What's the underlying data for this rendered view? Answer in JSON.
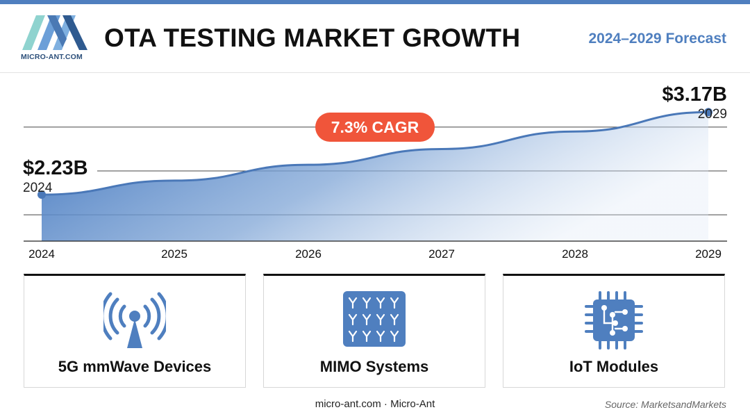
{
  "header": {
    "logo_text": "MICRO-ANT.COM",
    "title": "OTA TESTING MARKET GROWTH",
    "forecast": "2024–2029 Forecast"
  },
  "chart_data": {
    "type": "area",
    "title": "OTA TESTING MARKET GROWTH",
    "x": [
      "2024",
      "2025",
      "2026",
      "2027",
      "2028",
      "2029"
    ],
    "values": [
      2.23,
      2.39,
      2.57,
      2.75,
      2.95,
      3.17
    ],
    "unit": "$B",
    "ylim": [
      1.7,
      3.3
    ],
    "grid": true,
    "cagr_label": "7.3% CAGR",
    "annotations": [
      {
        "value_label": "$2.23B",
        "year_label": "2024"
      },
      {
        "value_label": "$3.17B",
        "year_label": "2029"
      }
    ]
  },
  "cards": [
    {
      "label": "5G mmWave Devices",
      "icon": "antenna-tower-icon"
    },
    {
      "label": "MIMO Systems",
      "icon": "antenna-array-icon"
    },
    {
      "label": "IoT Modules",
      "icon": "chip-icon"
    }
  ],
  "footer": {
    "site": "micro-ant.com · Micro-Ant",
    "source": "Source: MarketsandMarkets"
  },
  "colors": {
    "accent": "#4f7fbf",
    "cagr_badge": "#f0553a",
    "text": "#111111"
  }
}
